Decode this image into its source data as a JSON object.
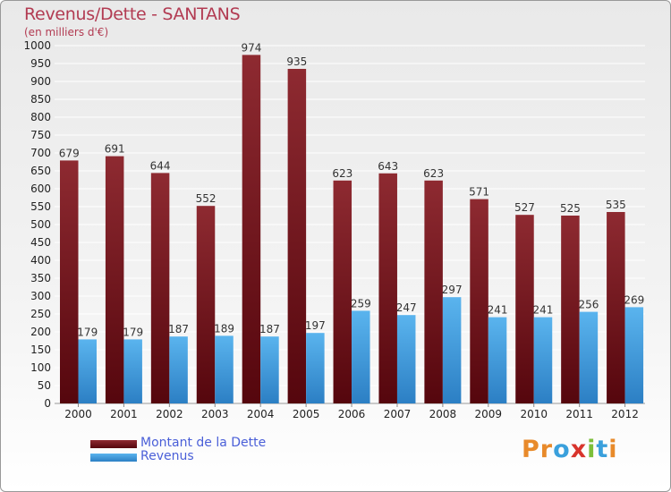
{
  "header": {
    "title": "Revenus/Dette - SANTANS",
    "subtitle": "(en milliers d'€)"
  },
  "legend": {
    "items": [
      {
        "label": "Montant de la Dette",
        "color": "#7a1c22"
      },
      {
        "label": "Revenus",
        "color": "#4aa3e0"
      }
    ]
  },
  "logo": {
    "text": "Proxiti",
    "letters": [
      "P",
      "r",
      "o",
      "x",
      "i",
      "t",
      "i"
    ],
    "colors": [
      "#e88a2a",
      "#e88a2a",
      "#3aa0dc",
      "#d8342c",
      "#7cbf3a",
      "#3aa0dc",
      "#e88a2a"
    ]
  },
  "chart_data": {
    "type": "bar",
    "title": "Revenus/Dette - SANTANS",
    "subtitle": "(en milliers d'€)",
    "categories": [
      "2000",
      "2001",
      "2002",
      "2003",
      "2004",
      "2005",
      "2006",
      "2007",
      "2008",
      "2009",
      "2010",
      "2011",
      "2012"
    ],
    "series": [
      {
        "name": "Montant de la Dette",
        "color": "#7a1c22",
        "values": [
          679,
          691,
          644,
          552,
          974,
          935,
          623,
          643,
          623,
          571,
          527,
          525,
          535
        ]
      },
      {
        "name": "Revenus",
        "color": "#4aa3e0",
        "values": [
          179,
          179,
          187,
          189,
          187,
          197,
          259,
          247,
          297,
          241,
          241,
          256,
          269
        ]
      }
    ],
    "ylim": [
      0,
      1000
    ],
    "ytick_step": 50,
    "grid": true,
    "legend_position": "bottom-left",
    "xlabel": "",
    "ylabel": ""
  }
}
